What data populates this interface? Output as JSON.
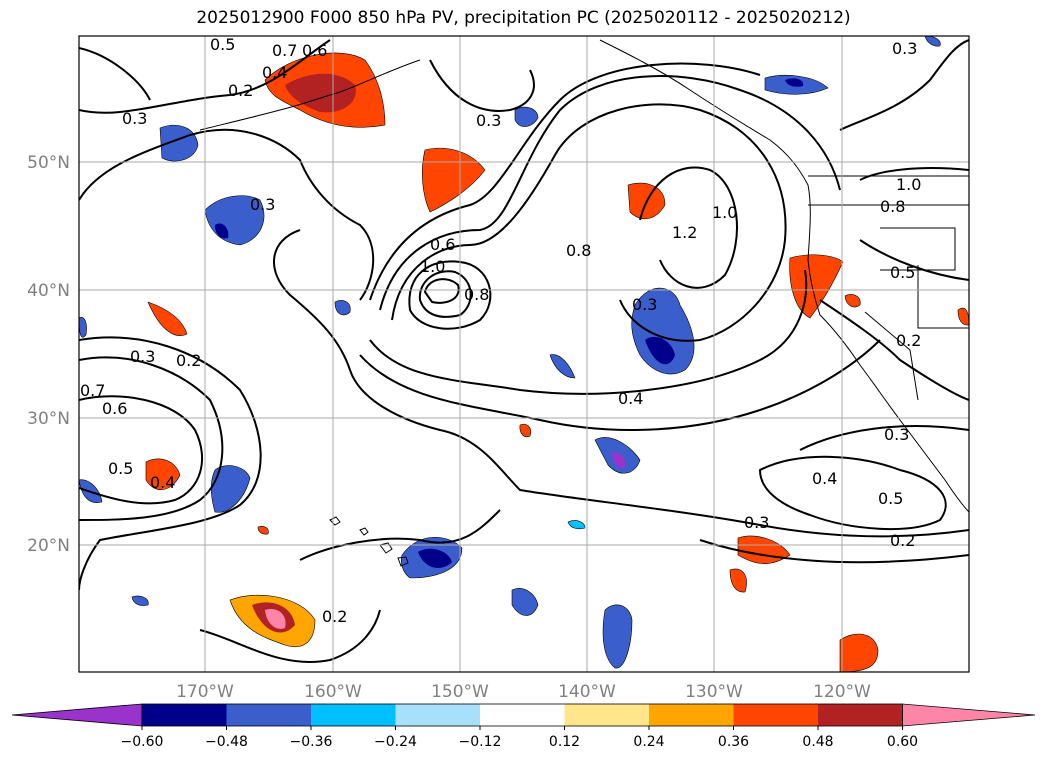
{
  "chart_data": {
    "type": "heatmap",
    "title": "2025012900 F000 850 hPa PV, precipitation PC (2025020112 - 2025020212)",
    "lat_ticks": [
      "50°N",
      "40°N",
      "30°N",
      "20°N"
    ],
    "lon_ticks": [
      "170°W",
      "160°W",
      "150°W",
      "140°W",
      "130°W",
      "120°W"
    ],
    "grid": true,
    "colorbar": {
      "orientation": "horizontal",
      "extend": "both",
      "ticks": [
        "−0.60",
        "−0.48",
        "−0.36",
        "−0.24",
        "−0.12",
        "0.12",
        "0.24",
        "0.36",
        "0.48",
        "0.60"
      ],
      "colors": [
        "#9933cc",
        "#00008b",
        "#3a5fcd",
        "#00bfff",
        "#a6e0fa",
        "#ffffff",
        "#ffe68a",
        "#ffa500",
        "#ff4500",
        "#b22222",
        "#ff85a8"
      ]
    },
    "contour_labels": [
      "0.5",
      "0.7",
      "0.6",
      "0.4",
      "0.2",
      "0.3",
      "0.3",
      "0.3",
      "0.3",
      "0.6",
      "1.0",
      "0.8",
      "0.8",
      "1.2",
      "1.0",
      "0.5",
      "0.2",
      "0.3",
      "0.7",
      "0.6",
      "0.5",
      "0.4",
      "0.2",
      "0.4",
      "0.3",
      "0.3",
      "0.4",
      "0.5",
      "0.2",
      "0.2",
      "0.3",
      "1.0",
      "0.8"
    ]
  }
}
